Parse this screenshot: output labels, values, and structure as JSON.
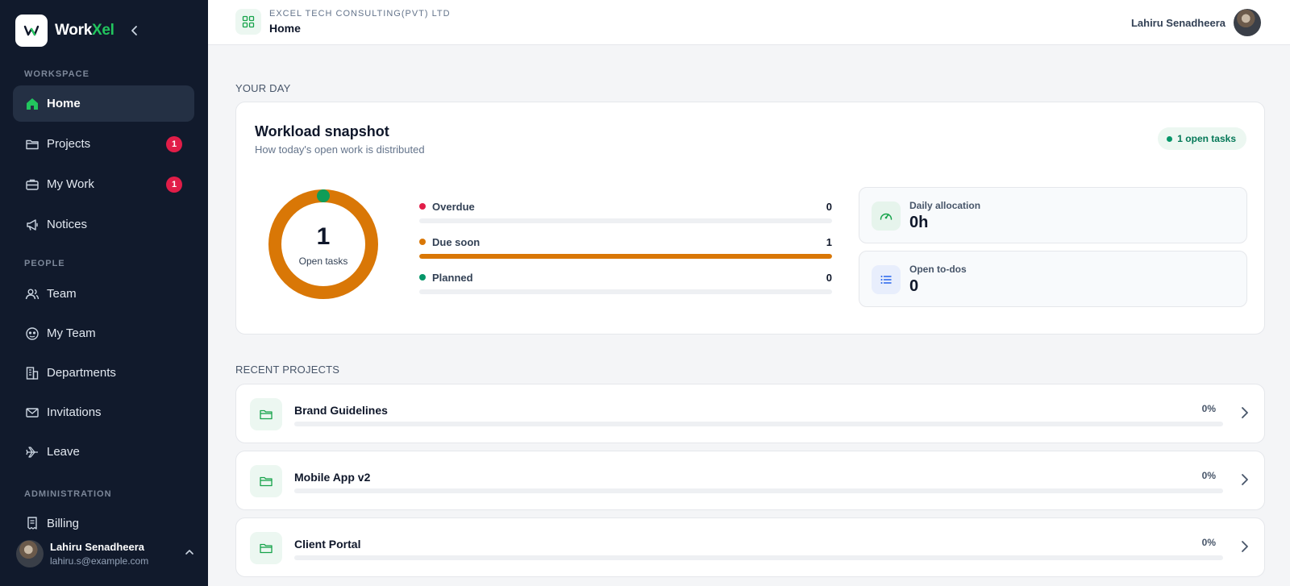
{
  "brand": {
    "name_part1": "Work",
    "name_part2": "Xel",
    "logo_icon": "workxel-logo"
  },
  "sidebar": {
    "sections": {
      "workspace": "WORKSPACE",
      "people": "PEOPLE",
      "administration": "ADMINISTRATION"
    },
    "items": [
      {
        "label": "Home",
        "icon": "home-icon",
        "active": true
      },
      {
        "label": "Projects",
        "icon": "folder-icon",
        "badge": "1"
      },
      {
        "label": "My Work",
        "icon": "briefcase-icon",
        "badge": "1"
      },
      {
        "label": "Notices",
        "icon": "megaphone-icon"
      },
      {
        "label": "Team",
        "icon": "users-icon"
      },
      {
        "label": "My Team",
        "icon": "team-face-icon"
      },
      {
        "label": "Departments",
        "icon": "building-icon"
      },
      {
        "label": "Invitations",
        "icon": "mail-icon"
      },
      {
        "label": "Leave",
        "icon": "plane-icon"
      },
      {
        "label": "Billing",
        "icon": "receipt-icon"
      }
    ],
    "user": {
      "name": "Lahiru Senadheera",
      "email": "lahiru.s@example.com"
    }
  },
  "topbar": {
    "org": "EXCEL TECH CONSULTING(PVT) LTD",
    "breadcrumb": "Home",
    "user_name": "Lahiru Senadheera"
  },
  "your_day": {
    "section_title": "YOUR DAY",
    "title": "Workload snapshot",
    "subtitle": "How today's open work is distributed",
    "pill": "1 open tasks",
    "donut": {
      "value": "1",
      "label": "Open tasks",
      "color": "#d97706",
      "marker_color": "#0f9d58"
    },
    "bars": [
      {
        "label": "Overdue",
        "value": "0",
        "fraction": 0,
        "color": "#e11d48"
      },
      {
        "label": "Due soon",
        "value": "1",
        "fraction": 1,
        "color": "#d97706"
      },
      {
        "label": "Planned",
        "value": "0",
        "fraction": 0,
        "color": "#059669"
      }
    ],
    "stats": [
      {
        "label": "Daily allocation",
        "value": "0h",
        "icon": "gauge-icon"
      },
      {
        "label": "Open to-dos",
        "value": "0",
        "icon": "list-icon"
      }
    ]
  },
  "recent_projects": {
    "section_title": "RECENT PROJECTS",
    "items": [
      {
        "name": "Brand Guidelines",
        "progress": "0%",
        "fraction": 0
      },
      {
        "name": "Mobile App v2",
        "progress": "0%",
        "fraction": 0
      },
      {
        "name": "Client Portal",
        "progress": "0%",
        "fraction": 0
      }
    ]
  }
}
